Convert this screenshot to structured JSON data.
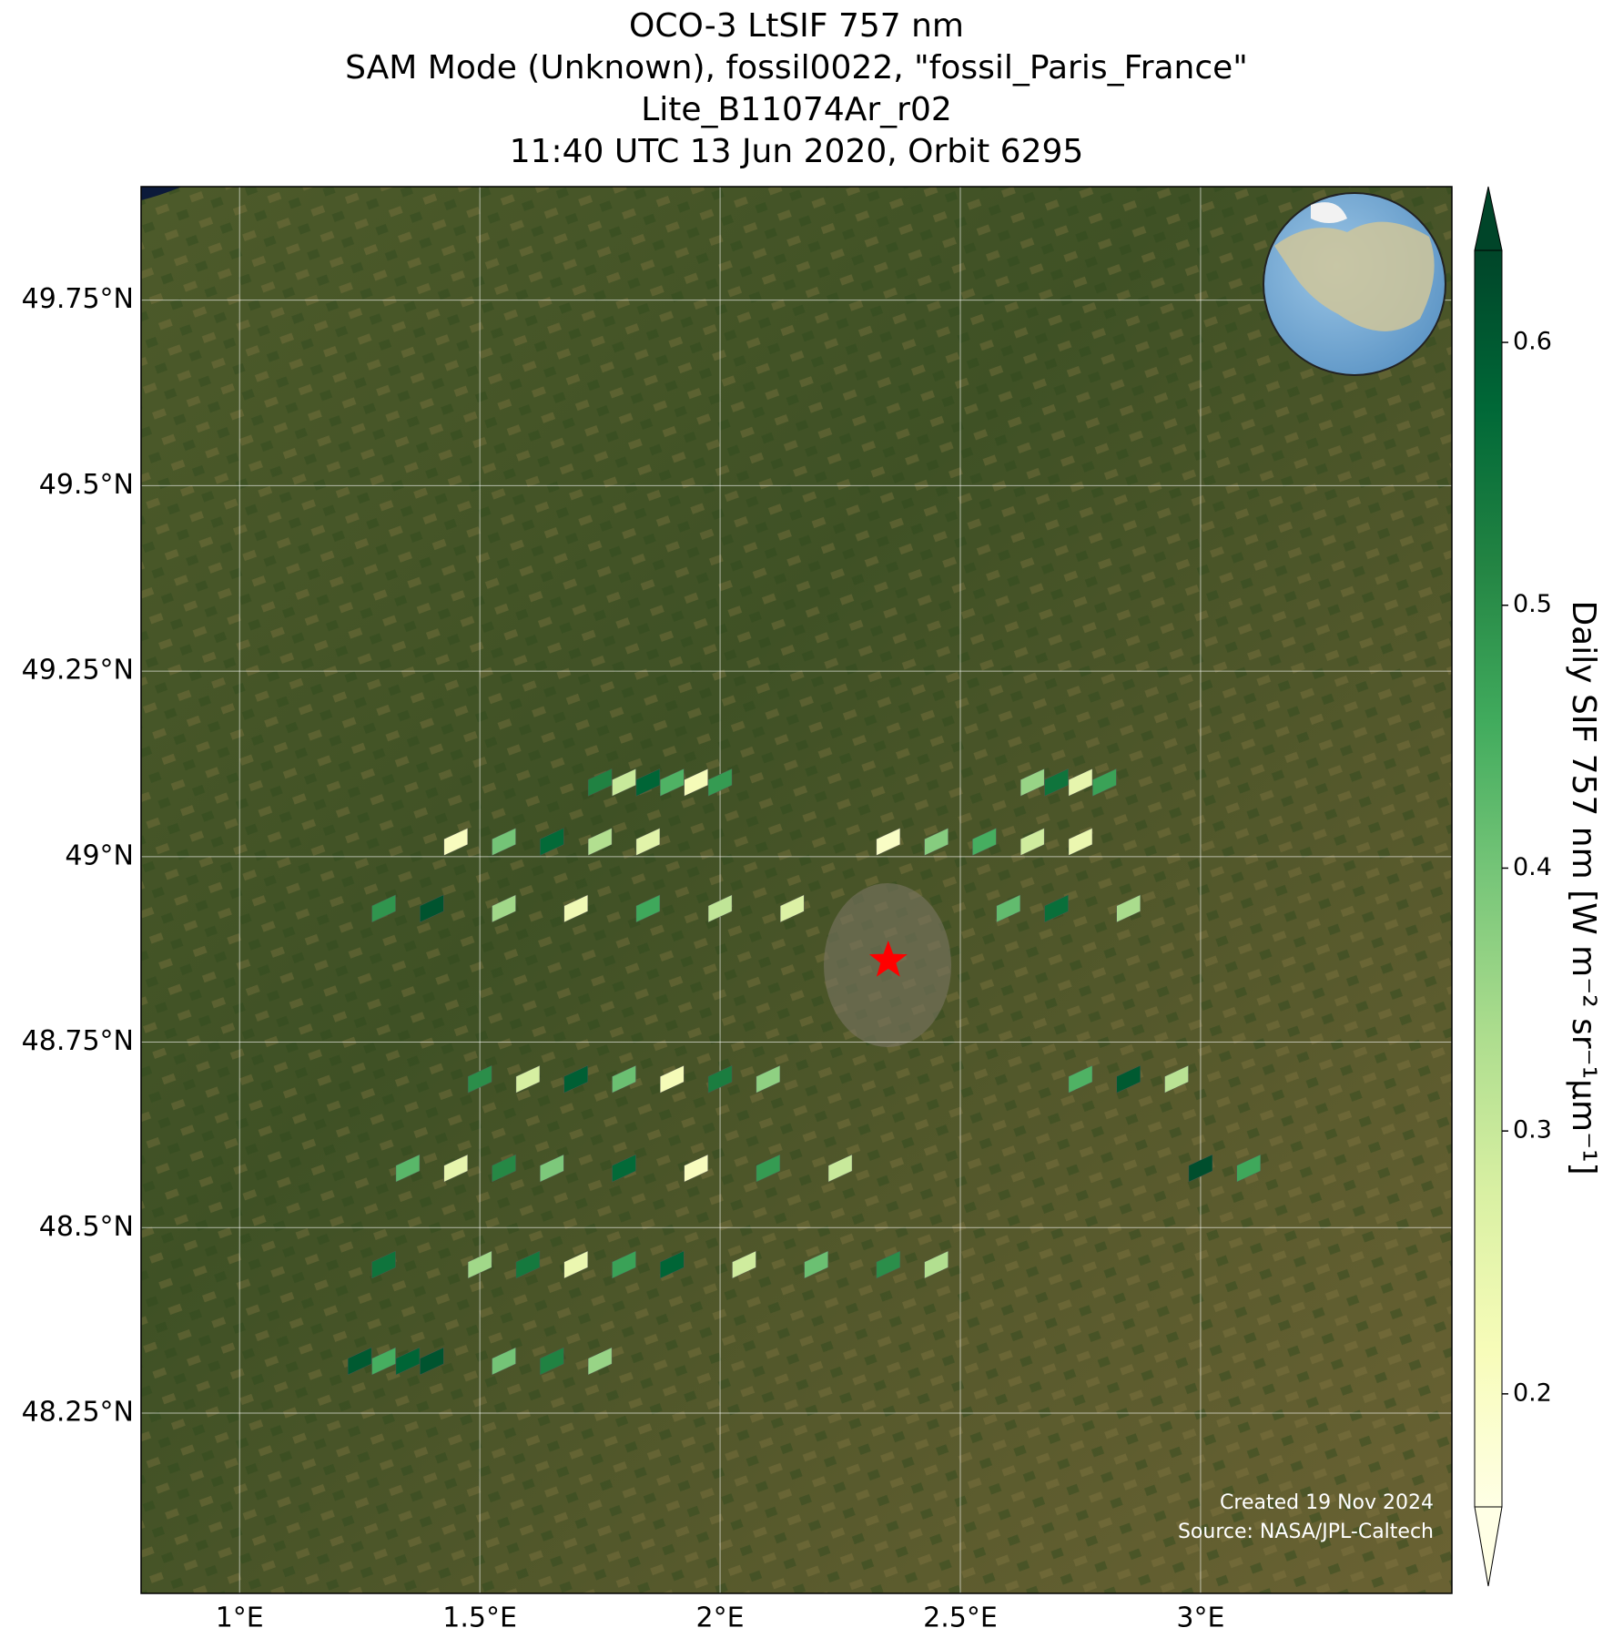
{
  "chart_data": {
    "type": "map",
    "title": [
      "OCO-3 LtSIF 757 nm",
      "SAM Mode (Unknown), fossil0022, \"fossil_Paris_France\"",
      "Lite_B11074Ar_r02",
      "11:40 UTC 13 Jun 2020, Orbit 6295"
    ],
    "xlim": [
      0.795,
      3.523
    ],
    "ylim": [
      48.007,
      49.903
    ],
    "xticks": [
      {
        "value": 1,
        "label": "1°E"
      },
      {
        "value": 1.5,
        "label": "1.5°E"
      },
      {
        "value": 2,
        "label": "2°E"
      },
      {
        "value": 2.5,
        "label": "2.5°E"
      },
      {
        "value": 3,
        "label": "3°E"
      }
    ],
    "yticks": [
      {
        "value": 48.25,
        "label": "48.25°N"
      },
      {
        "value": 48.5,
        "label": "48.5°N"
      },
      {
        "value": 48.75,
        "label": "48.75°N"
      },
      {
        "value": 49,
        "label": "49°N"
      },
      {
        "value": 49.25,
        "label": "49.25°N"
      },
      {
        "value": 49.5,
        "label": "49.5°N"
      },
      {
        "value": 49.75,
        "label": "49.75°N"
      }
    ],
    "grid": true,
    "colorbar": {
      "label": "Daily SIF 757 nm [W m⁻² sr⁻¹µm⁻¹]",
      "vlim": [
        0.157,
        0.635
      ],
      "ticks": [
        0.2,
        0.3,
        0.4,
        0.5,
        0.6
      ],
      "colormap": [
        "#ffffe5",
        "#f7fcb9",
        "#d9f0a3",
        "#addd8e",
        "#78c679",
        "#41ab5d",
        "#238443",
        "#006837",
        "#004529"
      ]
    },
    "target": {
      "lon": 2.35,
      "lat": 48.86,
      "color": "#ff0000"
    },
    "pixels": {
      "lon": [
        1.75,
        1.8,
        1.85,
        1.9,
        1.95,
        2.0,
        2.65,
        2.7,
        2.75,
        2.8,
        1.45,
        1.55,
        1.65,
        1.75,
        1.85,
        2.35,
        2.45,
        2.55,
        2.65,
        2.75,
        1.3,
        1.4,
        1.55,
        1.7,
        1.85,
        2.0,
        2.15,
        2.6,
        2.7,
        2.85,
        1.5,
        1.6,
        1.7,
        1.8,
        1.9,
        2.0,
        2.1,
        2.75,
        2.85,
        2.95,
        1.35,
        1.45,
        1.55,
        1.65,
        1.8,
        1.95,
        2.1,
        2.25,
        3.0,
        3.1,
        1.5,
        1.6,
        1.7,
        1.8,
        1.9,
        2.05,
        2.2,
        2.35,
        2.45,
        1.3,
        1.25,
        1.3,
        1.35,
        1.4,
        1.55,
        1.65,
        1.75
      ],
      "lat": [
        49.1,
        49.1,
        49.1,
        49.1,
        49.1,
        49.1,
        49.1,
        49.1,
        49.1,
        49.1,
        49.02,
        49.02,
        49.02,
        49.02,
        49.02,
        49.02,
        49.02,
        49.02,
        49.02,
        49.02,
        48.93,
        48.93,
        48.93,
        48.93,
        48.93,
        48.93,
        48.93,
        48.93,
        48.93,
        48.93,
        48.7,
        48.7,
        48.7,
        48.7,
        48.7,
        48.7,
        48.7,
        48.7,
        48.7,
        48.7,
        48.58,
        48.58,
        48.58,
        48.58,
        48.58,
        48.58,
        48.58,
        48.58,
        48.58,
        48.58,
        48.45,
        48.45,
        48.45,
        48.45,
        48.45,
        48.45,
        48.45,
        48.45,
        48.45,
        48.45,
        48.32,
        48.32,
        48.32,
        48.32,
        48.32,
        48.32,
        48.32
      ],
      "values": [
        0.52,
        0.3,
        0.58,
        0.44,
        0.22,
        0.48,
        0.36,
        0.55,
        0.25,
        0.47,
        0.21,
        0.4,
        0.57,
        0.33,
        0.26,
        0.2,
        0.38,
        0.45,
        0.29,
        0.24,
        0.49,
        0.61,
        0.35,
        0.23,
        0.46,
        0.31,
        0.27,
        0.42,
        0.56,
        0.34,
        0.5,
        0.28,
        0.59,
        0.41,
        0.22,
        0.53,
        0.37,
        0.44,
        0.6,
        0.32,
        0.43,
        0.25,
        0.51,
        0.39,
        0.57,
        0.21,
        0.48,
        0.3,
        0.62,
        0.46,
        0.35,
        0.54,
        0.24,
        0.47,
        0.58,
        0.29,
        0.41,
        0.5,
        0.33,
        0.55,
        0.6,
        0.45,
        0.58,
        0.61,
        0.4,
        0.52,
        0.36
      ]
    }
  },
  "credit": [
    "Created 19 Nov 2024",
    "Source: NASA/JPL-Caltech"
  ]
}
